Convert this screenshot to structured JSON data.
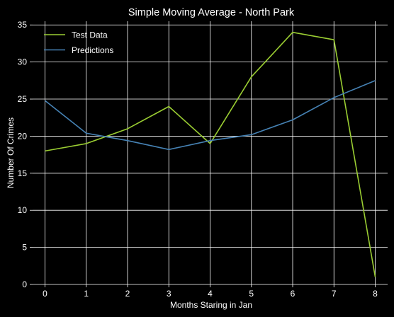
{
  "chart_data": {
    "type": "line",
    "title": "Simple Moving Average - North Park",
    "xlabel": "Months Staring in Jan",
    "ylabel": "Number Of Crimes",
    "x": [
      0,
      1,
      2,
      3,
      4,
      5,
      6,
      7,
      8
    ],
    "xlim": [
      -0.3,
      8.3
    ],
    "ylim": [
      0,
      35.5
    ],
    "xticks": [
      0,
      1,
      2,
      3,
      4,
      5,
      6,
      7,
      8
    ],
    "yticks": [
      0,
      5,
      10,
      15,
      20,
      25,
      30,
      35
    ],
    "grid": true,
    "legend_position": "top-left",
    "background": "#000000",
    "series": [
      {
        "name": "Test Data",
        "color": "#9acd32",
        "values": [
          18,
          19,
          21,
          24,
          19,
          28,
          34,
          33,
          1
        ]
      },
      {
        "name": "Predictions",
        "color": "#4682b4",
        "values": [
          24.8,
          20.4,
          19.4,
          18.2,
          19.4,
          20.2,
          22.2,
          25.2,
          27.5
        ]
      }
    ]
  }
}
